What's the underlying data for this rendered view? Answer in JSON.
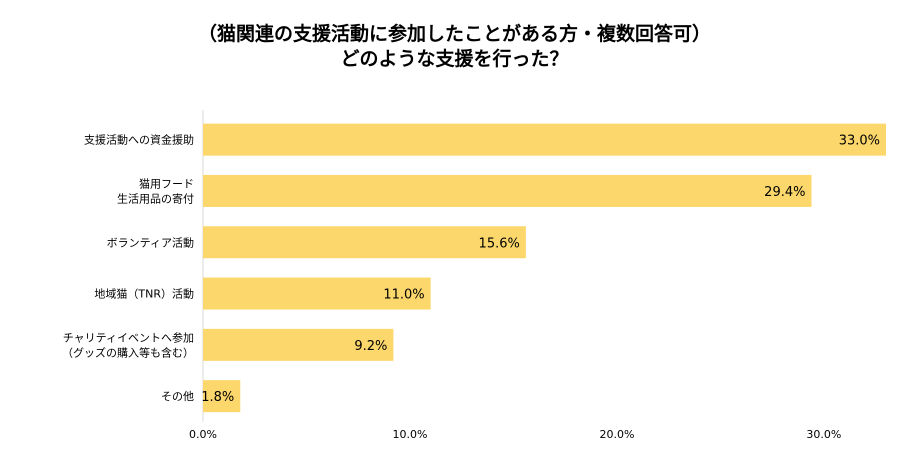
{
  "chart_data": {
    "type": "bar",
    "orientation": "horizontal",
    "title_lines": [
      "（猫関連の支援活動に参加したことがある方・複数回答可）",
      "どのような支援を行った？"
    ],
    "categories": [
      [
        "支援活動への資金援助"
      ],
      [
        "猫用フード",
        "生活用品の寄付"
      ],
      [
        "ボランティア活動"
      ],
      [
        "地域猫（TNR）活動"
      ],
      [
        "チャリティイベントへ参加",
        "（グッズの購入等も含む）"
      ],
      [
        "その他"
      ]
    ],
    "values": [
      33.0,
      29.4,
      15.6,
      11.0,
      9.2,
      1.8
    ],
    "value_labels": [
      "33.0%",
      "29.4%",
      "15.6%",
      "11.0%",
      "9.2%",
      "1.8%"
    ],
    "x_ticks": [
      0,
      10,
      20,
      30
    ],
    "x_tick_labels": [
      "0.0%",
      "10.0%",
      "20.0%",
      "30.0%"
    ],
    "xlim": [
      0,
      33.0
    ],
    "bar_color": "#FCD76B",
    "axis_color": "#d9d9d9",
    "grid": false
  }
}
